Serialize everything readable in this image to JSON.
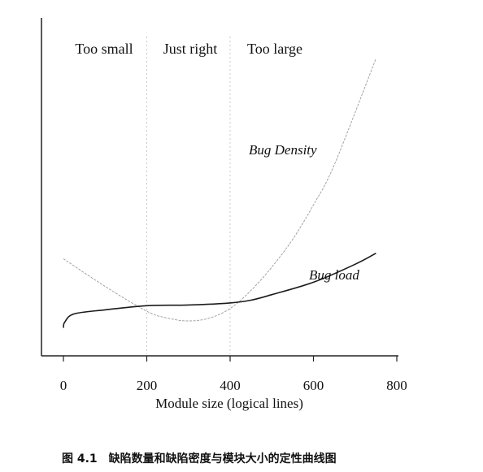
{
  "chart_data": {
    "type": "line",
    "title": "",
    "xlabel": "Module size (logical lines)",
    "ylabel": "",
    "xlim": [
      0,
      800
    ],
    "x_ticks": [
      "0",
      "200",
      "400",
      "600",
      "800"
    ],
    "grid": false,
    "legend": "none",
    "regions": [
      {
        "label": "Too small",
        "x_from": 0,
        "x_to": 200
      },
      {
        "label": "Just right",
        "x_from": 200,
        "x_to": 400
      },
      {
        "label": "Too large",
        "x_from": 400,
        "x_to": 800
      }
    ],
    "region_boundaries": [
      200,
      400
    ],
    "series": [
      {
        "name": "Bug Density",
        "style": "light thin",
        "color": "#9a9a9a",
        "points": [
          [
            0,
            0.55
          ],
          [
            100,
            0.35
          ],
          [
            200,
            0.17
          ],
          [
            250,
            0.12
          ],
          [
            300,
            0.1
          ],
          [
            350,
            0.12
          ],
          [
            400,
            0.19
          ],
          [
            450,
            0.32
          ],
          [
            500,
            0.49
          ],
          [
            550,
            0.69
          ],
          [
            600,
            0.94
          ],
          [
            650,
            1.23
          ],
          [
            750,
            2.0
          ]
        ]
      },
      {
        "name": "Bug load",
        "style": "solid",
        "color": "#1a1a1a",
        "points": [
          [
            0,
            0.05
          ],
          [
            3,
            0.09
          ],
          [
            25,
            0.15
          ],
          [
            100,
            0.18
          ],
          [
            200,
            0.21
          ],
          [
            300,
            0.215
          ],
          [
            400,
            0.23
          ],
          [
            450,
            0.25
          ],
          [
            500,
            0.29
          ],
          [
            600,
            0.38
          ],
          [
            700,
            0.51
          ],
          [
            750,
            0.59
          ]
        ]
      }
    ]
  },
  "caption": "图 4.1　缺陷数量和缺陷密度与模块大小的定性曲线图",
  "colors": {
    "axis": "#222222",
    "divider": "#c8c8c8"
  }
}
